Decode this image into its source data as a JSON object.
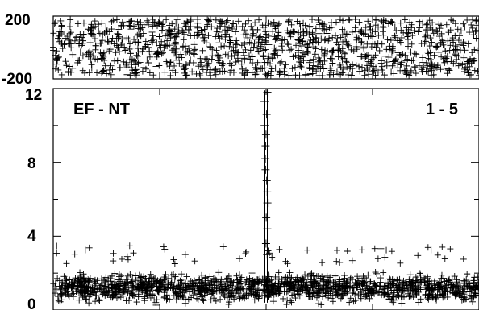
{
  "chart_data": [
    {
      "type": "scatter",
      "panel": "top",
      "marker": "plus",
      "ylim": [
        -200,
        200
      ],
      "x_range": [
        -1,
        1
      ],
      "yticks": [
        {
          "value": 200,
          "label": "200"
        },
        {
          "value": -200,
          "label": "-200"
        }
      ],
      "description_of_series": "phase values spread roughly uniformly between -180 and 180 across the full x range",
      "series": [
        {
          "point_count": 1200,
          "y_distribution": "uniform",
          "y_min": -180,
          "y_max": 180
        }
      ]
    },
    {
      "type": "scatter",
      "panel": "bottom",
      "marker": "plus",
      "ylim": [
        0,
        12
      ],
      "x_range": [
        -1,
        1
      ],
      "yticks": [
        {
          "value": 0,
          "label": "0"
        },
        {
          "value": 4,
          "label": "4"
        },
        {
          "value": 8,
          "label": "8"
        },
        {
          "value": 12,
          "label": "12"
        }
      ],
      "annotations": {
        "left": "EF - NT",
        "right": "1 - 5"
      },
      "series": [
        {
          "baseline_points": 1600,
          "baseline_typical": [
            0.2,
            2.2
          ],
          "baseline_outliers": [
            2.5,
            3.5
          ],
          "peak_x": 0.0,
          "peak_values": [
            11.8,
            11.3,
            10.6,
            10.0,
            9.5,
            8.9,
            8.2,
            7.6,
            7.0,
            6.4,
            5.8,
            5.0,
            4.4,
            3.6,
            3.0
          ]
        }
      ]
    }
  ]
}
